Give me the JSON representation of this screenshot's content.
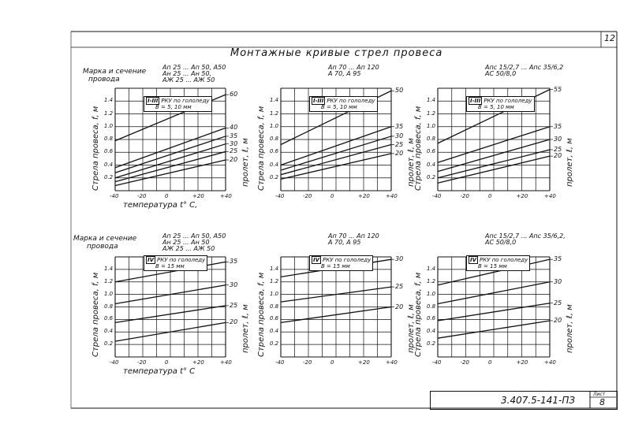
{
  "sheet": {
    "corner_number": "12",
    "title": "Монтажные кривые стрел провеса",
    "stamp_code": "3.407.5-141-ПЗ",
    "stamp_sheet_label": "Лист",
    "stamp_sheet_number": "8"
  },
  "headers": {
    "left_top": {
      "line1": "Марка и сечение",
      "line2": "провода"
    },
    "left_bottom": {
      "line1": "Марка и сечение",
      "line2": "провода"
    }
  },
  "charts": [
    {
      "id": "c1",
      "wire": [
        "Ап 25 ... Ап 50, А50",
        "Ан 25 ... Ан 50,",
        "АЖ 25 ... АЖ 50"
      ],
      "legend_num": "I-III",
      "legend": [
        "РКУ по гололеду",
        "В = 5, 10 мм"
      ],
      "xlabel": "температура t° C,",
      "ylabel": "Стрела провеса, f, м",
      "rlabel": "пролет, ℓ, м"
    },
    {
      "id": "c2",
      "wire": [
        "Ап 70 ... Ап 120",
        "А 70, А 95"
      ],
      "legend_num": "I-III",
      "legend": [
        "РКУ по гололеду",
        "В = 5, 10 мм"
      ],
      "xlabel": "",
      "ylabel": "Стрела провеса, f, м",
      "rlabel": "пролет, ℓ, м"
    },
    {
      "id": "c3",
      "wire": [
        "Апс 15/2,7 ... Апс 35/6,2",
        "АС 50/8,0"
      ],
      "legend_num": "I-III",
      "legend": [
        "РКУ по гололеду",
        "В = 5, 10 мм"
      ],
      "xlabel": "",
      "ylabel": "Стрела провеса, f, м",
      "rlabel": "пролет, ℓ, м"
    },
    {
      "id": "c4",
      "wire": [
        "Ап 25 ... Ап 50, А50",
        "Ан 25 ... Ан 50",
        "АЖ 25 ... АЖ 50"
      ],
      "legend_num": "IV",
      "legend": [
        "РКУ по гололеду",
        "В = 15 мм"
      ],
      "xlabel": "температура t° C",
      "ylabel": "Стрела провеса, f, м",
      "rlabel": "пролет, ℓ, м"
    },
    {
      "id": "c5",
      "wire": [
        "Ап 70 ... Ап 120",
        "А 70, А 95"
      ],
      "legend_num": "IV",
      "legend": [
        "РКУ по гололеду",
        "В = 15 мм"
      ],
      "xlabel": "",
      "ylabel": "Стрела провеса, f, м",
      "rlabel": "пролет, ℓ, м"
    },
    {
      "id": "c6",
      "wire": [
        "Апс 15/2,7 ... Апс 35/6,2,",
        "АС 50/8,0"
      ],
      "legend_num": "IV",
      "legend": [
        "РКУ по гололеду",
        "В = 15 мм"
      ],
      "xlabel": "",
      "ylabel": "Стрела провеса, f, м",
      "rlabel": "пролет, ℓ, м"
    }
  ],
  "chart_data": [
    {
      "type": "line",
      "x_ticks": [
        "-40",
        "-20",
        "0",
        "+20",
        "+40"
      ],
      "y_ticks": [
        "0.2",
        "0.4",
        "0.6",
        "0.8",
        "1.0",
        "1.2",
        "1.4"
      ],
      "xlim": [
        -40,
        40
      ],
      "ylim": [
        0,
        1.6
      ],
      "series": [
        {
          "name": "60",
          "values": [
            0.78,
            1.5
          ]
        },
        {
          "name": "40",
          "values": [
            0.36,
            0.98
          ]
        },
        {
          "name": "35",
          "values": [
            0.28,
            0.85
          ]
        },
        {
          "name": "30",
          "values": [
            0.2,
            0.73
          ]
        },
        {
          "name": "25",
          "values": [
            0.14,
            0.61
          ]
        },
        {
          "name": "20",
          "values": [
            0.08,
            0.48
          ]
        }
      ]
    },
    {
      "type": "line",
      "x_ticks": [
        "-40",
        "-20",
        "0",
        "+20",
        "+40"
      ],
      "y_ticks": [
        "0.2",
        "0.4",
        "0.6",
        "0.8",
        "1.0",
        "1.2",
        "1.4"
      ],
      "xlim": [
        -40,
        40
      ],
      "ylim": [
        0,
        1.6
      ],
      "series": [
        {
          "name": "50",
          "values": [
            0.72,
            1.56
          ]
        },
        {
          "name": "35",
          "values": [
            0.4,
            1.0
          ]
        },
        {
          "name": "30",
          "values": [
            0.32,
            0.85
          ]
        },
        {
          "name": "25",
          "values": [
            0.25,
            0.72
          ]
        },
        {
          "name": "20",
          "values": [
            0.18,
            0.58
          ]
        }
      ]
    },
    {
      "type": "line",
      "x_ticks": [
        "-40",
        "-20",
        "0",
        "+20",
        "+40"
      ],
      "y_ticks": [
        "0.2",
        "0.4",
        "0.6",
        "0.8",
        "1.0",
        "1.2",
        "1.4"
      ],
      "xlim": [
        -40,
        40
      ],
      "ylim": [
        0,
        1.6
      ],
      "series": [
        {
          "name": "55",
          "values": [
            0.74,
            1.58
          ]
        },
        {
          "name": "35",
          "values": [
            0.44,
            1.0
          ]
        },
        {
          "name": "30",
          "values": [
            0.3,
            0.8
          ]
        },
        {
          "name": "25",
          "values": [
            0.2,
            0.64
          ]
        },
        {
          "name": "20",
          "values": [
            0.12,
            0.54
          ]
        }
      ]
    },
    {
      "type": "line",
      "x_ticks": [
        "-40",
        "-20",
        "0",
        "+20",
        "+40"
      ],
      "y_ticks": [
        "0.2",
        "0.4",
        "0.6",
        "0.8",
        "1.0",
        "1.2",
        "1.4"
      ],
      "xlim": [
        -40,
        40
      ],
      "ylim": [
        0,
        1.6
      ],
      "series": [
        {
          "name": "35",
          "values": [
            1.2,
            1.52
          ]
        },
        {
          "name": "30",
          "values": [
            0.85,
            1.15
          ]
        },
        {
          "name": "25",
          "values": [
            0.55,
            0.82
          ]
        },
        {
          "name": "20",
          "values": [
            0.25,
            0.55
          ]
        }
      ]
    },
    {
      "type": "line",
      "x_ticks": [
        "-40",
        "-20",
        "0",
        "+20",
        "+40"
      ],
      "y_ticks": [
        "0.2",
        "0.4",
        "0.6",
        "0.8",
        "1.0",
        "1.2",
        "1.4"
      ],
      "xlim": [
        -40,
        40
      ],
      "ylim": [
        0,
        1.6
      ],
      "series": [
        {
          "name": "30",
          "values": [
            1.28,
            1.56
          ]
        },
        {
          "name": "25",
          "values": [
            0.88,
            1.12
          ]
        },
        {
          "name": "20",
          "values": [
            0.55,
            0.8
          ]
        }
      ]
    },
    {
      "type": "line",
      "x_ticks": [
        "-40",
        "-20",
        "0",
        "+20",
        "+40"
      ],
      "y_ticks": [
        "0.2",
        "0.4",
        "0.6",
        "0.8",
        "1.0",
        "1.2",
        "1.4"
      ],
      "xlim": [
        -40,
        40
      ],
      "ylim": [
        0,
        1.6
      ],
      "series": [
        {
          "name": "35",
          "values": [
            1.15,
            1.56
          ]
        },
        {
          "name": "30",
          "values": [
            0.85,
            1.2
          ]
        },
        {
          "name": "25",
          "values": [
            0.58,
            0.86
          ]
        },
        {
          "name": "20",
          "values": [
            0.3,
            0.58
          ]
        }
      ]
    }
  ]
}
